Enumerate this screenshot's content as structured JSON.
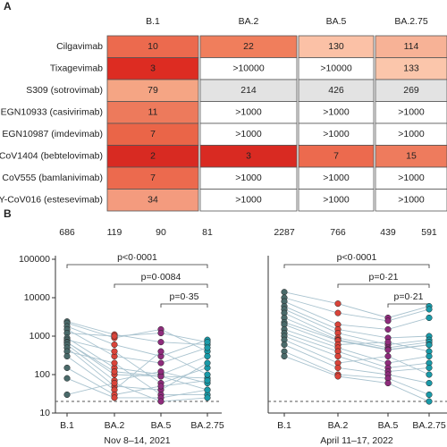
{
  "table": {
    "label": "A",
    "columns": [
      "B.1",
      "BA.2",
      "BA.5",
      "BA.2.75"
    ],
    "rows": [
      {
        "name": "Cilgavimab",
        "cells": [
          "10",
          "22",
          "130",
          "114"
        ],
        "colors": [
          "#ec6a4e",
          "#f07e5c",
          "#fbc1a6",
          "#f7b296"
        ]
      },
      {
        "name": "Tixagevimab",
        "cells": [
          "3",
          ">10000",
          ">10000",
          "133"
        ],
        "colors": [
          "#dd2c22",
          "#ffffff",
          "#ffffff",
          "#fbc6ab"
        ]
      },
      {
        "name": "S309 (sotrovimab)",
        "cells": [
          "79",
          "214",
          "426",
          "269"
        ],
        "colors": [
          "#f5a584",
          "#e3e3e3",
          "#e3e3e3",
          "#e3e3e3"
        ]
      },
      {
        "name": "EGN10933 (casivirimab)",
        "cells": [
          "11",
          ">1000",
          ">1000",
          ">1000"
        ],
        "colors": [
          "#ed7a5c",
          "#ffffff",
          "#ffffff",
          "#ffffff"
        ]
      },
      {
        "name": "EGN10987 (imdevimab)",
        "cells": [
          "7",
          ">1000",
          ">1000",
          ">1000"
        ],
        "colors": [
          "#ea6548",
          "#ffffff",
          "#ffffff",
          "#ffffff"
        ]
      },
      {
        "name": "CoV1404 (bebtelovimab)",
        "cells": [
          "2",
          "3",
          "7",
          "15"
        ],
        "colors": [
          "#d82a22",
          "#d92a22",
          "#ec6a4e",
          "#ee7b5d"
        ]
      },
      {
        "name": "CoV555 (bamlanivimab)",
        "cells": [
          "7",
          ">1000",
          ">1000",
          ">1000"
        ],
        "colors": [
          "#ec6a4e",
          "#ffffff",
          "#ffffff",
          "#ffffff"
        ]
      },
      {
        "name": "Y-CoV016 (estesevimab)",
        "cells": [
          "34",
          ">1000",
          ">1000",
          ">1000"
        ],
        "colors": [
          "#f49b7e",
          "#ffffff",
          "#ffffff",
          "#ffffff"
        ]
      }
    ]
  },
  "chart_data": [
    {
      "type": "scatter",
      "panel_label": "B",
      "xlabel": "Nov 8–14, 2021",
      "categories": [
        "B.1",
        "BA.2",
        "BA.5",
        "BA.2.75"
      ],
      "category_colors": [
        "#4a6a6a",
        "#d9443a",
        "#8e2c7c",
        "#1a9aa8"
      ],
      "line_color": "#a9c3cf",
      "medians": [
        686,
        119,
        90,
        81
      ],
      "annotations": [
        "p<0·0001",
        "p=0·0084",
        "p=0·35"
      ],
      "log": true,
      "ylim": [
        10,
        100000
      ],
      "yticks": [
        10,
        100,
        1000,
        10000,
        100000
      ],
      "lod": 20,
      "series": [
        {
          "values": [
            2400,
            1100,
            700,
            600
          ]
        },
        {
          "values": [
            2200,
            900,
            1500,
            400
          ]
        },
        {
          "values": [
            1800,
            600,
            300,
            800
          ]
        },
        {
          "values": [
            1500,
            300,
            200,
            500
          ]
        },
        {
          "values": [
            1200,
            1000,
            1200,
            700
          ]
        },
        {
          "values": [
            900,
            150,
            100,
            300
          ]
        },
        {
          "values": [
            800,
            400,
            60,
            150
          ]
        },
        {
          "values": [
            700,
            100,
            90,
            40
          ]
        },
        {
          "values": [
            686,
            119,
            90,
            81
          ]
        },
        {
          "values": [
            600,
            70,
            120,
            60
          ]
        },
        {
          "values": [
            500,
            50,
            40,
            200
          ]
        },
        {
          "values": [
            400,
            200,
            30,
            30
          ]
        },
        {
          "values": [
            300,
            40,
            400,
            100
          ]
        },
        {
          "values": [
            150,
            30,
            50,
            70
          ]
        },
        {
          "values": [
            80,
            25,
            25,
            40
          ]
        },
        {
          "values": [
            30,
            60,
            20,
            25
          ]
        }
      ]
    },
    {
      "type": "scatter",
      "xlabel": "April 11–17, 2022",
      "categories": [
        "B.1",
        "BA.2",
        "BA.5",
        "BA.2.75"
      ],
      "category_colors": [
        "#4a6a6a",
        "#d9443a",
        "#8e2c7c",
        "#1a9aa8"
      ],
      "line_color": "#a9c3cf",
      "medians": [
        2287,
        766,
        439,
        591
      ],
      "annotations": [
        "p<0·0001",
        "p=0·21",
        "p=0·21"
      ],
      "log": true,
      "ylim": [
        10,
        100000
      ],
      "lod": 20,
      "series": [
        {
          "values": [
            14000,
            7000,
            3000,
            6000
          ]
        },
        {
          "values": [
            10000,
            4000,
            2500,
            5000
          ]
        },
        {
          "values": [
            8000,
            2000,
            1500,
            3000
          ]
        },
        {
          "values": [
            6000,
            1500,
            900,
            1000
          ]
        },
        {
          "values": [
            5000,
            1200,
            600,
            800
          ]
        },
        {
          "values": [
            4000,
            900,
            500,
            700
          ]
        },
        {
          "values": [
            3000,
            800,
            450,
            600
          ]
        },
        {
          "values": [
            2287,
            766,
            439,
            591
          ]
        },
        {
          "values": [
            2000,
            600,
            700,
            400
          ]
        },
        {
          "values": [
            1500,
            500,
            200,
            300
          ]
        },
        {
          "values": [
            1200,
            400,
            150,
            200
          ]
        },
        {
          "values": [
            1000,
            300,
            120,
            150
          ]
        },
        {
          "values": [
            800,
            200,
            300,
            100
          ]
        },
        {
          "values": [
            600,
            150,
            100,
            60
          ]
        },
        {
          "values": [
            400,
            100,
            80,
            30
          ]
        },
        {
          "values": [
            300,
            90,
            60,
            20
          ]
        }
      ]
    }
  ]
}
